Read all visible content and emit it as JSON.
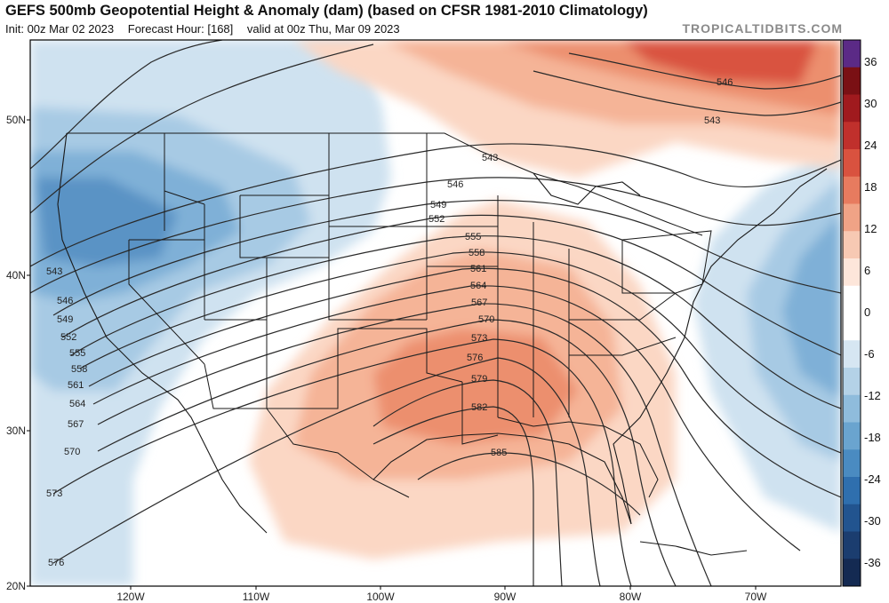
{
  "header": {
    "title": "GEFS 500mb Geopotential Height & Anomaly (dam) (based on CFSR 1981-2010 Climatology)",
    "init": "Init: 00z Mar 02 2023",
    "forecast_hour": "Forecast Hour: [168]",
    "valid": "valid at 00z Thu, Mar 09 2023",
    "credit": "TROPICALTIDBITS.COM"
  },
  "map": {
    "lat_labels": [
      "50N",
      "40N",
      "30N",
      "20N"
    ],
    "lon_labels": [
      "120W",
      "110W",
      "100W",
      "90W",
      "80W",
      "70W"
    ],
    "contour_labels": [
      "543",
      "546",
      "549",
      "552",
      "555",
      "558",
      "561",
      "564",
      "567",
      "570",
      "573",
      "576",
      "579",
      "582",
      "585"
    ],
    "contour_labels_west": [
      "543",
      "546",
      "549",
      "552",
      "555",
      "558",
      "561",
      "564",
      "567",
      "570",
      "573",
      "576"
    ],
    "contour_labels_ne": [
      "546",
      "543"
    ]
  },
  "colorbar": {
    "ticks": [
      "36",
      "30",
      "24",
      "18",
      "12",
      "6",
      "0",
      "-6",
      "-12",
      "-18",
      "-24",
      "-30",
      "-36"
    ],
    "colors": [
      "#5b2a86",
      "#7a1014",
      "#a01a1e",
      "#c0302c",
      "#d9523f",
      "#e77b5f",
      "#f0a386",
      "#f7c9b3",
      "#fde6da",
      "#ffffff",
      "#ffffff",
      "#d6e6f2",
      "#b4d2e7",
      "#8fbcdc",
      "#6aa4cf",
      "#4a8bc1",
      "#2f6fae",
      "#22548f",
      "#1b3d6f",
      "#142a52"
    ]
  },
  "colors": {
    "warm_light": "#fbd7c4",
    "warm_mid": "#f5b497",
    "warm_strong": "#ec8f6e",
    "warm_deep": "#d9523f",
    "cool_light": "#cfe2f0",
    "cool_mid": "#a7cae4",
    "cool_strong": "#7fb0d7",
    "cool_deep": "#5a93c5"
  }
}
